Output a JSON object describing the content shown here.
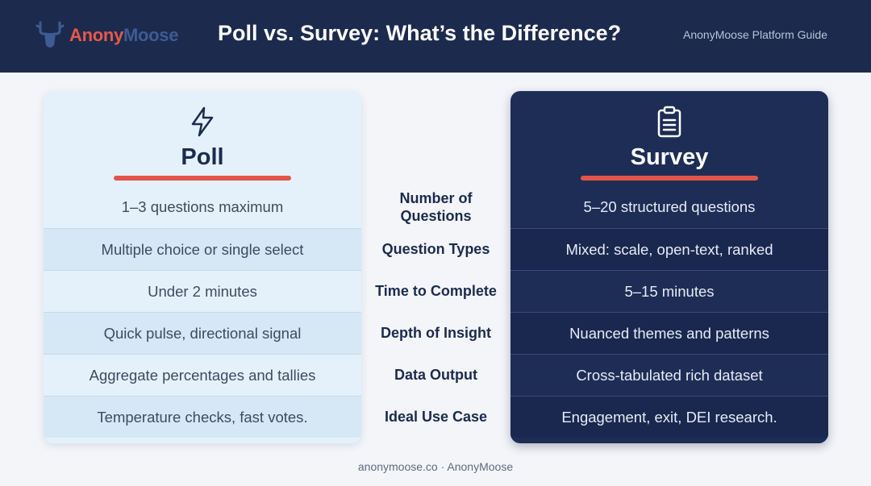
{
  "header": {
    "logo_anony": "Anony",
    "logo_moose": "Moose",
    "title": "Poll vs. Survey: What’s the Difference?",
    "guide_label": "AnonyMoose Platform Guide"
  },
  "poll": {
    "title": "Poll",
    "icon": "lightning-bolt-icon",
    "rows": [
      "1–3 questions maximum",
      "Multiple choice or single select",
      "Under 2 minutes",
      "Quick pulse, directional signal",
      "Aggregate percentages and tallies",
      "Temperature checks, fast votes."
    ]
  },
  "criteria": [
    "Number of Questions",
    "Question Types",
    "Time to Complete",
    "Depth of Insight",
    "Data Output",
    "Ideal Use Case"
  ],
  "survey": {
    "title": "Survey",
    "icon": "clipboard-icon",
    "rows": [
      "5–20 structured questions",
      "Mixed: scale, open-text, ranked",
      "5–15 minutes",
      "Nuanced themes and patterns",
      "Cross-tabulated rich dataset",
      "Engagement, exit, DEI research."
    ]
  },
  "footer": {
    "text": "anonymoose.co · AnonyMoose"
  },
  "colors": {
    "header_bg": "#1c2b4d",
    "accent_red": "#e2544a",
    "poll_card": "#e4f1fb",
    "survey_card": "#1e2d56"
  }
}
